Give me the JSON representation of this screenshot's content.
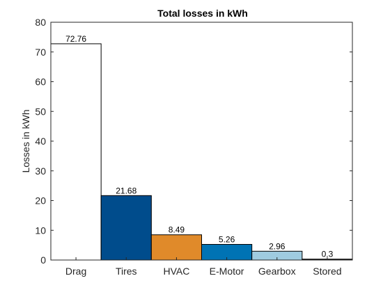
{
  "chart_data": {
    "type": "bar",
    "title": "Total losses in kWh",
    "xlabel": "",
    "ylabel": "Losses in kWh",
    "ylim": [
      0,
      80
    ],
    "yticks": [
      0,
      10,
      20,
      30,
      40,
      50,
      60,
      70,
      80
    ],
    "categories": [
      "Drag",
      "Tires",
      "HVAC",
      "E-Motor",
      "Gearbox",
      "Stored"
    ],
    "values": [
      72.76,
      21.68,
      8.49,
      5.26,
      2.96,
      0.3
    ],
    "data_labels": [
      "72.76",
      "21.68",
      "8.49",
      "5.26",
      "2.96",
      "0.3"
    ],
    "colors": [
      "#ffffff",
      "#004c8c",
      "#e08a2a",
      "#0073b4",
      "#9fcbe0",
      "#1a1a1a"
    ],
    "grid": false,
    "box": true
  }
}
